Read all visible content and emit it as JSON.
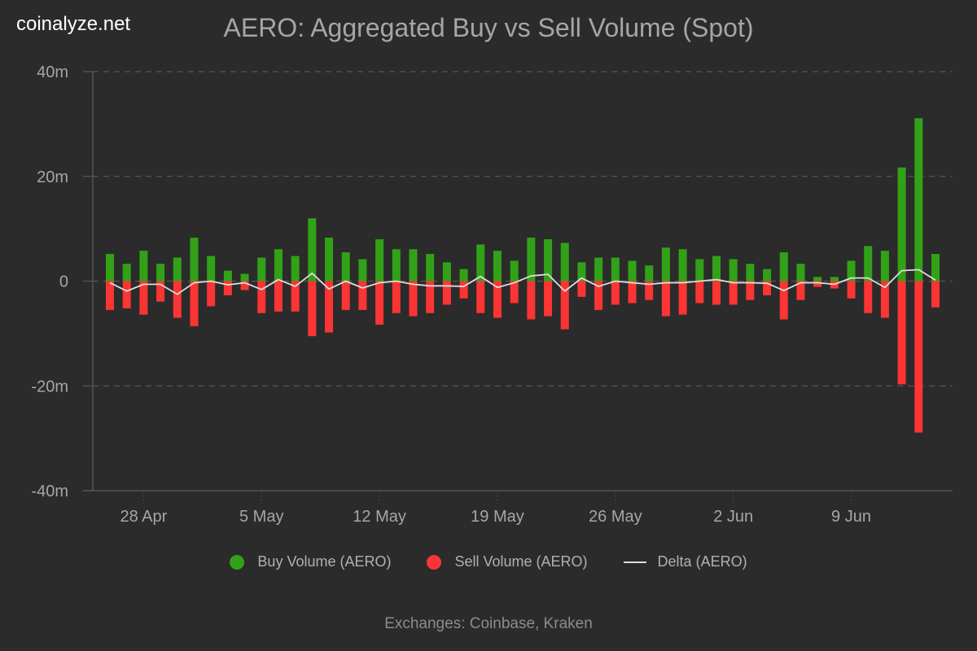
{
  "brand": "coinalyze.net",
  "footer": "Exchanges: Coinbase, Kraken",
  "colors": {
    "background": "#2b2b2b",
    "buy": "#31a217",
    "sell": "#fb3434",
    "delta": "#dddddd",
    "grid": "#555555",
    "text": "#a6a6a6"
  },
  "chart_data": {
    "type": "bar",
    "title": "AERO: Aggregated Buy vs Sell Volume (Spot)",
    "xlabel": "",
    "ylabel": "",
    "ylim": [
      -40,
      40
    ],
    "yunit": "m",
    "yticks": [
      {
        "value": 40,
        "label": "40m"
      },
      {
        "value": 20,
        "label": "20m"
      },
      {
        "value": 0,
        "label": "0"
      },
      {
        "value": -20,
        "label": "-20m"
      },
      {
        "value": -40,
        "label": "-40m"
      }
    ],
    "xticks": [
      {
        "index": 2,
        "label": "28 Apr"
      },
      {
        "index": 9,
        "label": "5 May"
      },
      {
        "index": 16,
        "label": "12 May"
      },
      {
        "index": 23,
        "label": "19 May"
      },
      {
        "index": 30,
        "label": "26 May"
      },
      {
        "index": 37,
        "label": "2 Jun"
      },
      {
        "index": 44,
        "label": "9 Jun"
      }
    ],
    "grid": true,
    "legend_position": "bottom",
    "categories": [
      "26 Apr",
      "27 Apr",
      "28 Apr",
      "29 Apr",
      "30 Apr",
      "1 May",
      "2 May",
      "3 May",
      "4 May",
      "5 May",
      "6 May",
      "7 May",
      "8 May",
      "9 May",
      "10 May",
      "11 May",
      "12 May",
      "13 May",
      "14 May",
      "15 May",
      "16 May",
      "17 May",
      "18 May",
      "19 May",
      "20 May",
      "21 May",
      "22 May",
      "23 May",
      "24 May",
      "25 May",
      "26 May",
      "27 May",
      "28 May",
      "29 May",
      "30 May",
      "31 May",
      "1 Jun",
      "2 Jun",
      "3 Jun",
      "4 Jun",
      "5 Jun",
      "6 Jun",
      "7 Jun",
      "8 Jun",
      "9 Jun",
      "10 Jun",
      "11 Jun",
      "12 Jun",
      "13 Jun",
      "14 Jun"
    ],
    "series": [
      {
        "name": "Buy Volume (AERO)",
        "kind": "bar",
        "values": [
          5.2,
          3.3,
          5.8,
          3.3,
          4.5,
          8.3,
          4.8,
          2.0,
          1.4,
          4.5,
          6.1,
          4.8,
          12.0,
          8.3,
          5.5,
          4.2,
          8.0,
          6.1,
          6.1,
          5.2,
          3.6,
          2.3,
          7.0,
          5.8,
          3.9,
          8.3,
          8.0,
          7.3,
          3.6,
          4.5,
          4.5,
          3.9,
          3.0,
          6.4,
          6.1,
          4.2,
          4.8,
          4.2,
          3.3,
          2.3,
          5.5,
          3.3,
          0.8,
          0.8,
          3.9,
          6.7,
          5.8,
          21.7,
          31.1,
          5.2
        ]
      },
      {
        "name": "Sell Volume (AERO)",
        "kind": "bar",
        "values": [
          -5.5,
          -5.2,
          -6.4,
          -3.9,
          -7.0,
          -8.6,
          -4.8,
          -2.7,
          -1.7,
          -6.1,
          -5.8,
          -5.8,
          -10.5,
          -9.8,
          -5.5,
          -5.5,
          -8.3,
          -6.1,
          -6.7,
          -6.1,
          -4.5,
          -3.3,
          -6.1,
          -7.0,
          -4.2,
          -7.3,
          -6.7,
          -9.2,
          -3.0,
          -5.5,
          -4.5,
          -4.2,
          -3.6,
          -6.7,
          -6.4,
          -4.2,
          -4.5,
          -4.5,
          -3.6,
          -2.7,
          -7.3,
          -3.6,
          -1.1,
          -1.4,
          -3.3,
          -6.1,
          -7.0,
          -19.7,
          -28.9,
          -5.0
        ]
      },
      {
        "name": "Delta (AERO)",
        "kind": "line",
        "values": [
          -0.3,
          -1.9,
          -0.6,
          -0.6,
          -2.5,
          -0.3,
          0.0,
          -0.7,
          -0.3,
          -1.6,
          0.3,
          -1.0,
          1.5,
          -1.5,
          0.0,
          -1.3,
          -0.3,
          0.0,
          -0.6,
          -0.9,
          -0.9,
          -1.0,
          0.9,
          -1.2,
          -0.3,
          1.0,
          1.3,
          -1.9,
          0.6,
          -1.0,
          0.0,
          -0.3,
          -0.6,
          -0.3,
          -0.3,
          0.0,
          0.3,
          -0.3,
          -0.3,
          -0.4,
          -1.8,
          -0.3,
          -0.3,
          -0.6,
          0.6,
          0.6,
          -1.2,
          2.0,
          2.2,
          0.2
        ]
      }
    ]
  }
}
